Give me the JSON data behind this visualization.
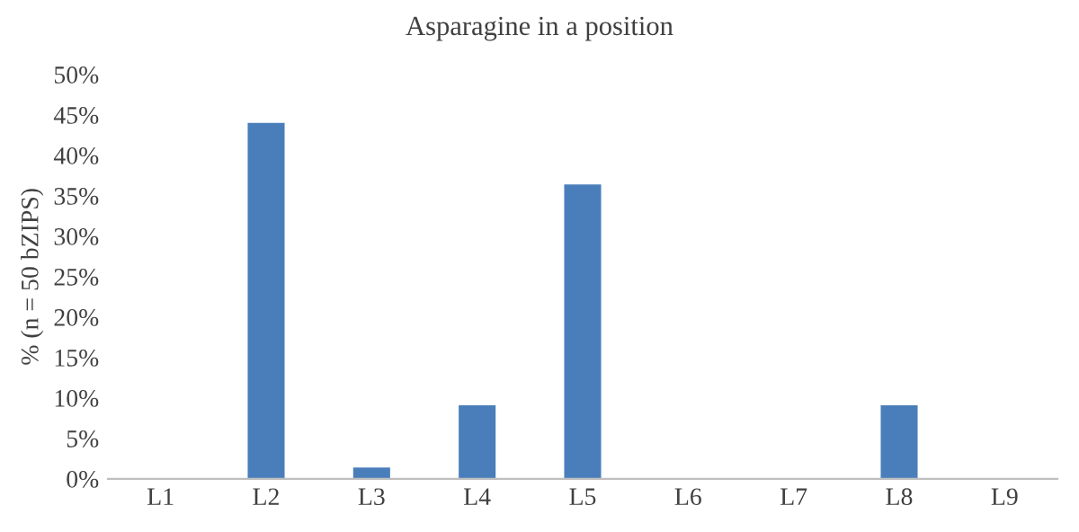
{
  "chart_data": {
    "type": "bar",
    "title": "Asparagine in a position",
    "ylabel": "% (n = 50 bZIPS)",
    "categories": [
      "L1",
      "L2",
      "L3",
      "L4",
      "L5",
      "L6",
      "L7",
      "L8",
      "L9"
    ],
    "values": [
      0,
      44,
      1.4,
      9.1,
      36.4,
      0,
      0,
      9.1,
      0
    ],
    "color": "#4a7ebb",
    "ylim": [
      0,
      50
    ],
    "yticks": [
      {
        "value": 0,
        "label": "0%"
      },
      {
        "value": 5,
        "label": "5%"
      },
      {
        "value": 10,
        "label": "10%"
      },
      {
        "value": 15,
        "label": "15%"
      },
      {
        "value": 20,
        "label": "20%"
      },
      {
        "value": 25,
        "label": "25%"
      },
      {
        "value": 30,
        "label": "30%"
      },
      {
        "value": 35,
        "label": "35%"
      },
      {
        "value": 40,
        "label": "40%"
      },
      {
        "value": 45,
        "label": "45%"
      },
      {
        "value": 50,
        "label": "50%"
      }
    ],
    "grid": false,
    "legend": false
  }
}
